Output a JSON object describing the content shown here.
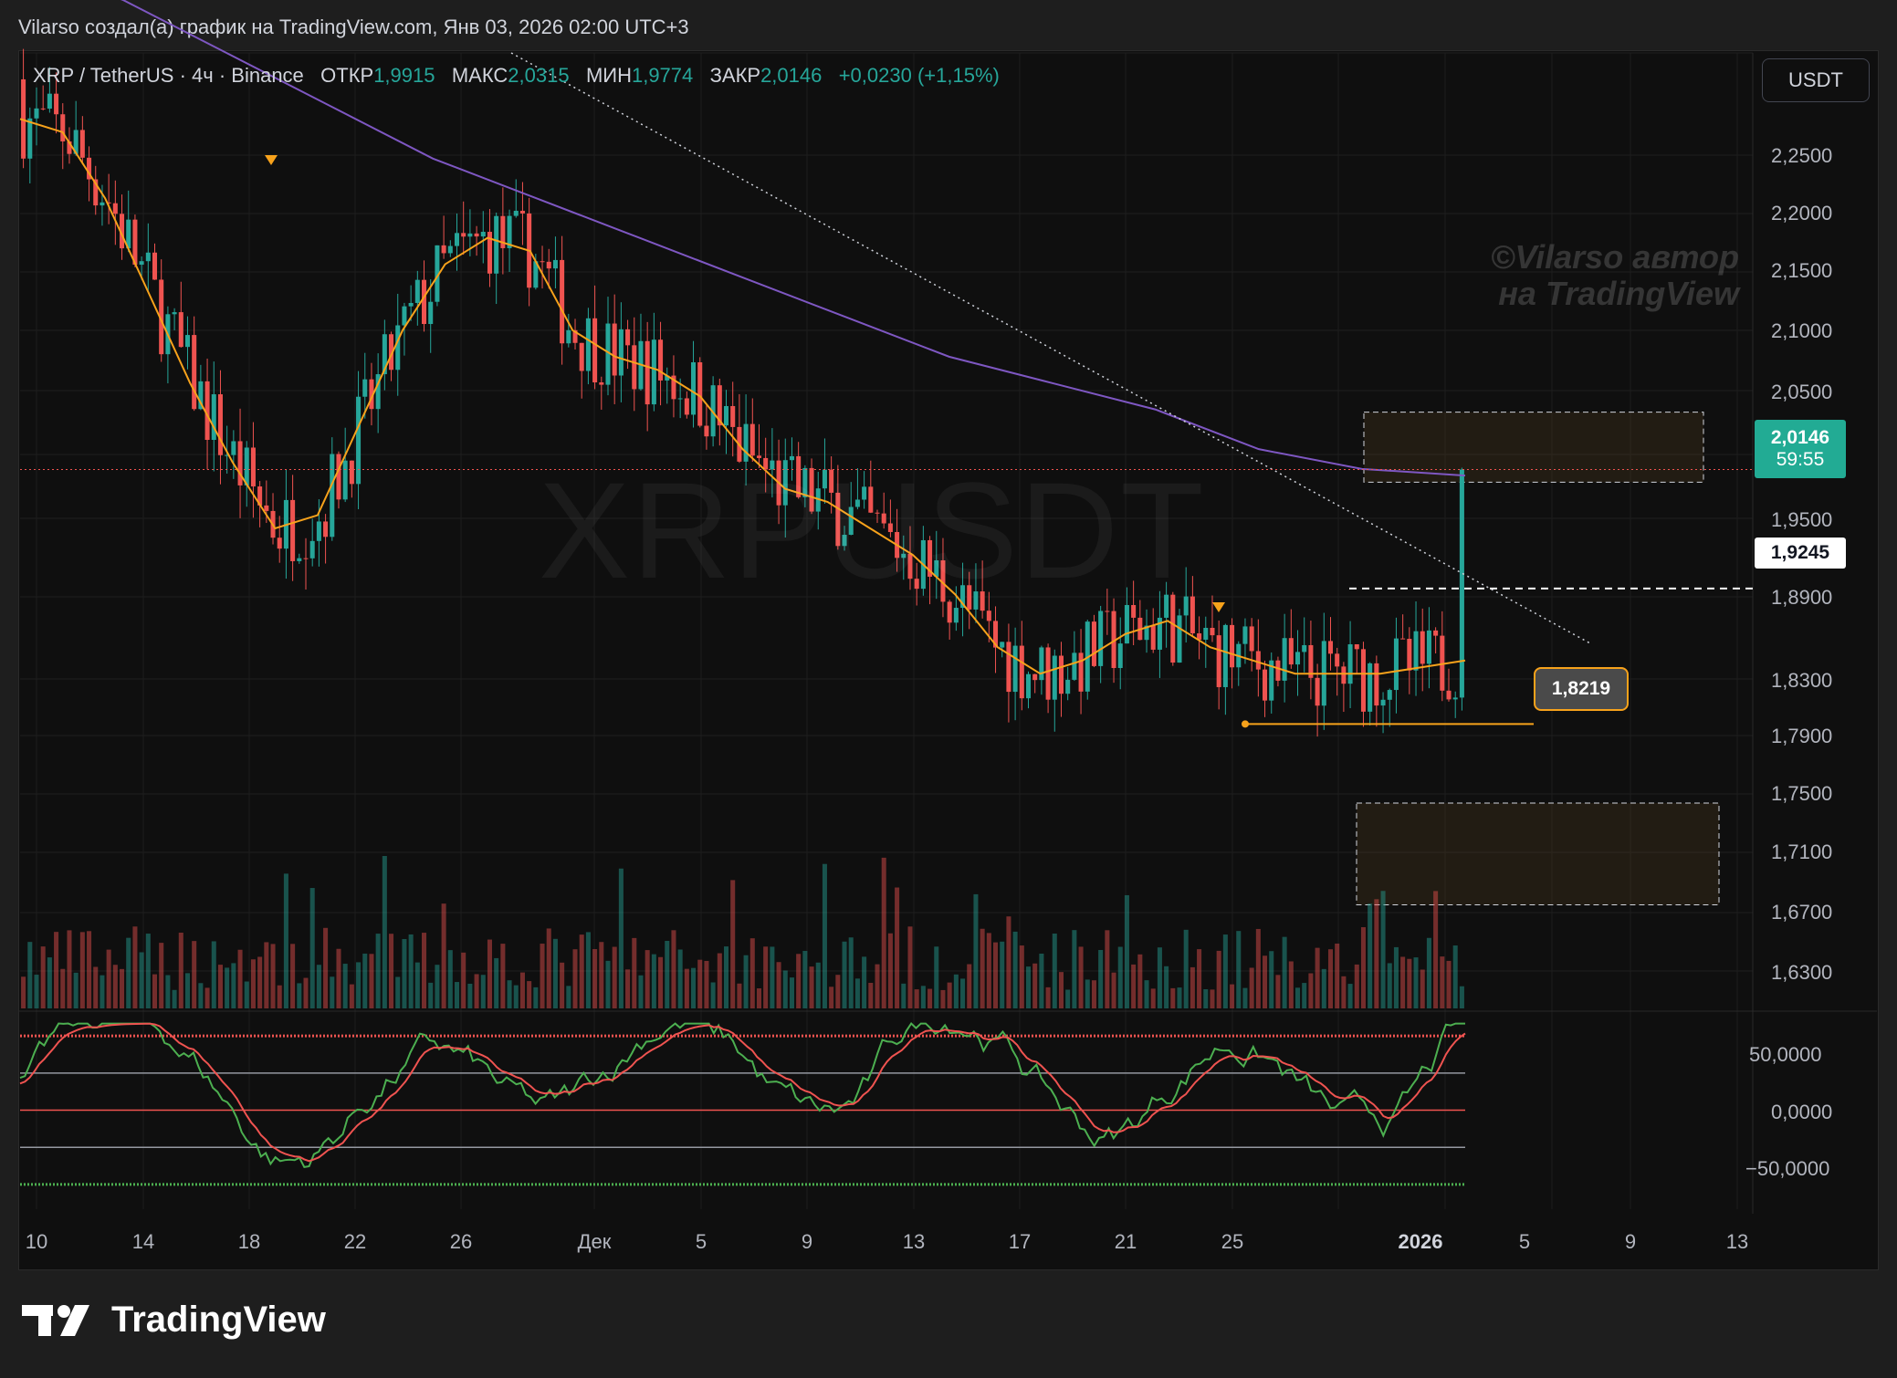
{
  "header": {
    "attribution": "Vilarso создал(а) график на TradingView.com, Янв 03, 2026 02:00 UTC+3"
  },
  "legend": {
    "symbol": "XRP / TetherUS · 4ч · Binance",
    "open_label": "ОТКР",
    "open_value": "1,9915",
    "high_label": "МАКС",
    "high_value": "2,0315",
    "low_label": "МИН",
    "low_value": "1,9774",
    "close_label": "ЗАКР",
    "close_value": "2,0146",
    "change": "+0,0230 (+1,15%)"
  },
  "currency_button": "USDT",
  "watermark": {
    "line1": "©Vilarso автор",
    "line2": "на TradingView"
  },
  "symbol_watermark": "XRPUSDT",
  "price_axis": {
    "ticks": [
      "2,2500",
      "2,2000",
      "2,1500",
      "2,1000",
      "2,0500",
      "1,9500",
      "1,8900",
      "1,8300",
      "1,7900",
      "1,7500",
      "1,7100",
      "1,6700",
      "1,6300"
    ],
    "current_price": "2,0146",
    "countdown": "59:55",
    "level_label": "1,9245",
    "support_label": "1,8219"
  },
  "oscillator_axis": {
    "ticks": [
      "50,0000",
      "0,0000",
      "−50,0000"
    ]
  },
  "time_axis": {
    "ticks": [
      "10",
      "14",
      "18",
      "22",
      "26",
      "Дек",
      "5",
      "9",
      "13",
      "17",
      "21",
      "25",
      "2026",
      "5",
      "9",
      "13"
    ]
  },
  "footer": {
    "brand": "TradingView"
  },
  "colors": {
    "up": "#26a69a",
    "down": "#ef5350",
    "ema": "#f7a21b",
    "ma": "#7e57c2",
    "accent": "#22ab94"
  },
  "chart_data": {
    "type": "candlestick",
    "title": "XRP / TetherUS · 4ч · Binance",
    "ylim": [
      1.61,
      2.33
    ],
    "last_close": 2.0146,
    "horizontal_levels": [
      1.9245,
      1.8219
    ],
    "zones": [
      {
        "from": 2.005,
        "to": 2.058
      },
      {
        "from": 1.685,
        "to": 1.762
      }
    ],
    "ema_series": [
      2.28,
      2.27,
      2.22,
      2.15,
      2.08,
      2.02,
      1.97,
      1.98,
      2.05,
      2.12,
      2.17,
      2.19,
      2.18,
      2.12,
      2.1,
      2.09,
      2.07,
      2.03,
      2.0,
      1.99,
      1.97,
      1.95,
      1.92,
      1.88,
      1.86,
      1.87,
      1.89,
      1.9,
      1.88,
      1.87,
      1.86,
      1.86,
      1.86,
      1.865,
      1.87
    ],
    "ma_series": [
      2.4,
      2.37,
      2.33,
      2.29,
      2.25,
      2.22,
      2.19,
      2.16,
      2.13,
      2.1,
      2.08,
      2.06,
      2.03,
      2.015,
      2.01
    ],
    "oscillator": {
      "ylim": [
        -80,
        80
      ],
      "levels": [
        60,
        30,
        0,
        -30,
        -60
      ]
    }
  }
}
